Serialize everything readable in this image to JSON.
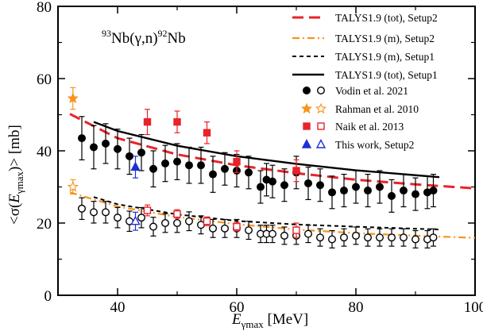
{
  "chart_data": {
    "type": "scatter",
    "title": "",
    "annotation": {
      "target_mass": "93",
      "target": "Nb(",
      "gamma": "γ",
      "channel": ",n)",
      "product_mass": "92",
      "product": "Nb"
    },
    "xlabel": {
      "main": "E",
      "sub": "γmax",
      "unit": " [MeV]"
    },
    "ylabel": {
      "prefix": "<σ(",
      "main": "E",
      "sub": "γmax",
      "suffix": ")> [mb]"
    },
    "xlim": [
      30,
      100
    ],
    "ylim": [
      0,
      80
    ],
    "xticks": [
      40,
      60,
      80,
      100
    ],
    "yticks": [
      0,
      20,
      40,
      60,
      80
    ],
    "xtick_labels": [
      "40",
      "60",
      "80",
      "100"
    ],
    "ytick_labels": [
      "0",
      "20",
      "40",
      "60",
      "80"
    ],
    "grid": false,
    "legend_position": "top-right",
    "lines": [
      {
        "name": "TALYS1.9 (tot), Setup2",
        "color": "#e8232a",
        "dash": "14,7",
        "width": 3,
        "x": [
          32,
          40,
          50,
          60,
          70,
          80,
          90,
          100
        ],
        "y": [
          50.2,
          43.5,
          39.0,
          36.0,
          33.8,
          32.0,
          30.7,
          29.6
        ]
      },
      {
        "name": "TALYS1.9 (m), Setup2",
        "color": "#f7941d",
        "dash": "9,4,2,4",
        "width": 2.2,
        "x": [
          32,
          40,
          50,
          60,
          70,
          80,
          90,
          100
        ],
        "y": [
          28.5,
          24.6,
          21.7,
          19.7,
          18.2,
          17.2,
          16.5,
          15.9
        ]
      },
      {
        "name": "TALYS1.9 (m), Setup1",
        "color": "#000000",
        "dash": "5,4",
        "width": 2,
        "x": [
          36,
          40,
          50,
          60,
          70,
          80,
          94
        ],
        "y": [
          27.2,
          25.2,
          22.4,
          20.6,
          19.6,
          19.0,
          18.2
        ]
      },
      {
        "name": "TALYS1.9 (tot), Setup1",
        "color": "#000000",
        "dash": "",
        "width": 2.4,
        "x": [
          36,
          40,
          50,
          60,
          70,
          80,
          94
        ],
        "y": [
          48.0,
          45.5,
          41.4,
          38.5,
          36.4,
          34.6,
          32.7
        ]
      }
    ],
    "series": [
      {
        "name": "Vodin et al. 2021",
        "marker": "circle",
        "color": "#000000",
        "filled": true,
        "x": [
          34,
          36,
          38,
          40,
          42,
          44,
          46,
          48,
          50,
          52,
          54,
          56,
          58,
          60,
          62,
          64,
          65,
          66,
          68,
          70,
          72,
          74,
          76,
          78,
          80,
          82,
          84,
          86,
          88,
          90,
          92,
          93
        ],
        "y": [
          43.5,
          41,
          42,
          40.5,
          38.5,
          39.5,
          35,
          36.5,
          37,
          36,
          36,
          33.5,
          35,
          34.5,
          34,
          30,
          32,
          31.5,
          30.5,
          34,
          31,
          30.5,
          28.5,
          29,
          30,
          29,
          30,
          27.5,
          29,
          28,
          28.5,
          29
        ],
        "err": [
          6,
          6,
          5.5,
          5.5,
          5,
          5,
          5,
          5,
          5,
          5,
          5,
          5,
          4.5,
          4.5,
          4.5,
          4.5,
          4.5,
          4.5,
          4.5,
          4.5,
          4.5,
          4.5,
          4.5,
          4.5,
          4.5,
          4.5,
          4.5,
          4.5,
          4.5,
          4.5,
          4.5,
          4.5
        ]
      },
      {
        "name": "",
        "marker": "circle",
        "color": "#000000",
        "filled": false,
        "x": [
          34,
          36,
          38,
          40,
          42,
          44,
          46,
          48,
          50,
          52,
          54,
          56,
          58,
          60,
          62,
          64,
          65,
          66,
          68,
          70,
          72,
          74,
          76,
          78,
          80,
          82,
          84,
          86,
          88,
          90,
          92,
          93
        ],
        "y": [
          24,
          23,
          23,
          21.5,
          20.5,
          21.5,
          19,
          20,
          20,
          20.5,
          19.5,
          18.5,
          18.5,
          18.5,
          18,
          17,
          17,
          17,
          16.5,
          16.5,
          17,
          16,
          15.5,
          16,
          16.5,
          16,
          16,
          16,
          16,
          15.5,
          15.5,
          16
        ],
        "err": [
          3,
          3,
          3,
          2.8,
          2.8,
          2.8,
          2.6,
          2.6,
          2.6,
          2.6,
          2.5,
          2.5,
          2.5,
          2.5,
          2.5,
          2.4,
          2.4,
          2.4,
          2.4,
          2.4,
          2.4,
          2.4,
          2.4,
          2.4,
          2.4,
          2.4,
          2.4,
          2.4,
          2.4,
          2.4,
          2.4,
          2.4
        ]
      },
      {
        "name": "Rahman et al. 2010",
        "marker": "star",
        "color": "#f7941d",
        "filled": true,
        "x": [
          32.5
        ],
        "y": [
          54.5
        ],
        "err": [
          3
        ]
      },
      {
        "name": "",
        "marker": "star",
        "color": "#f7941d",
        "filled": false,
        "x": [
          32.5
        ],
        "y": [
          30
        ],
        "err": [
          2
        ]
      },
      {
        "name": "Naik et al. 2013",
        "marker": "square",
        "color": "#e8232a",
        "filled": true,
        "x": [
          45,
          50,
          55,
          60,
          70
        ],
        "y": [
          48,
          48,
          45,
          37,
          34.5
        ],
        "err": [
          3.5,
          3,
          3,
          3,
          3
        ]
      },
      {
        "name": "",
        "marker": "square",
        "color": "#e8232a",
        "filled": false,
        "x": [
          45,
          50,
          55,
          60,
          70
        ],
        "y": [
          23.5,
          22.5,
          20.5,
          19,
          18
        ],
        "err": [
          1.5,
          1.2,
          1.2,
          1.2,
          2
        ]
      },
      {
        "name": "This work, Setup2",
        "marker": "triangle",
        "color": "#1f2fd6",
        "filled": true,
        "x": [
          43
        ],
        "y": [
          35.5
        ],
        "err": [
          3
        ]
      },
      {
        "name": "",
        "marker": "triangle",
        "color": "#1f2fd6",
        "filled": false,
        "x": [
          43
        ],
        "y": [
          20.5
        ],
        "err": [
          2.5
        ]
      }
    ]
  }
}
